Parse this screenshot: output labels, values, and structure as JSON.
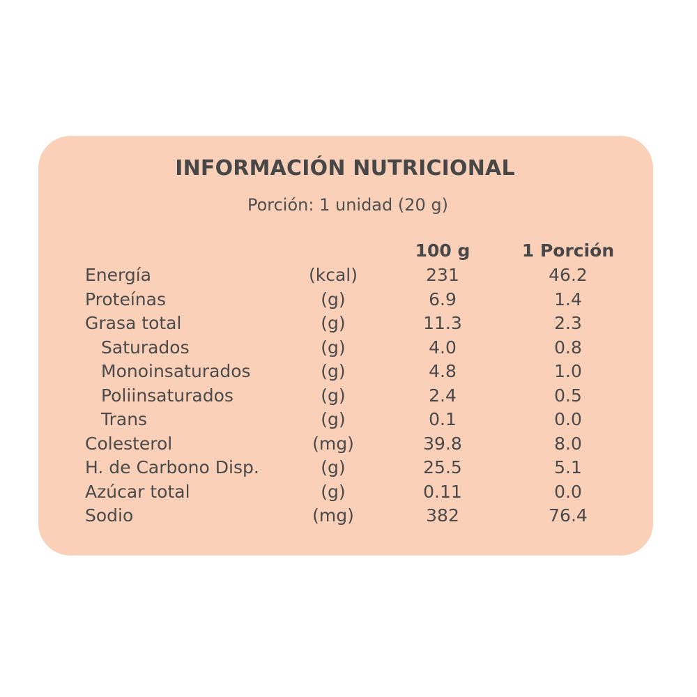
{
  "title": "INFORMACIÓN NUTRICIONAL",
  "serving": "Porción: 1 unidad (20 g)",
  "columns": {
    "per100": "100 g",
    "perPortion": "1 Porción"
  },
  "rows": [
    {
      "name": "Energía",
      "unit": "(kcal)",
      "per100": "231",
      "perPortion": "46.2"
    },
    {
      "name": "Proteínas",
      "unit": "(g)",
      "per100": "6.9",
      "perPortion": "1.4"
    },
    {
      "name": "Grasa total",
      "unit": "(g)",
      "per100": "11.3",
      "perPortion": "2.3"
    },
    {
      "name": "Saturados",
      "unit": "(g)",
      "per100": "4.0",
      "perPortion": "0.8"
    },
    {
      "name": "Monoinsaturados",
      "unit": "(g)",
      "per100": "4.8",
      "perPortion": "1.0"
    },
    {
      "name": "Poliinsaturados",
      "unit": "(g)",
      "per100": "2.4",
      "perPortion": "0.5"
    },
    {
      "name": "Trans",
      "unit": "(g)",
      "per100": "0.1",
      "perPortion": "0.0"
    },
    {
      "name": "Colesterol",
      "unit": "(mg)",
      "per100": "39.8",
      "perPortion": "8.0"
    },
    {
      "name": "H. de Carbono Disp.",
      "unit": "(g)",
      "per100": "25.5",
      "perPortion": "5.1"
    },
    {
      "name": "Azúcar total",
      "unit": "(g)",
      "per100": "0.11",
      "perPortion": "0.0"
    },
    {
      "name": "Sodio",
      "unit": "(mg)",
      "per100": "382",
      "perPortion": "76.4"
    }
  ],
  "colors": {
    "card": "#fbd0b9",
    "text": "#4a4a4a"
  }
}
